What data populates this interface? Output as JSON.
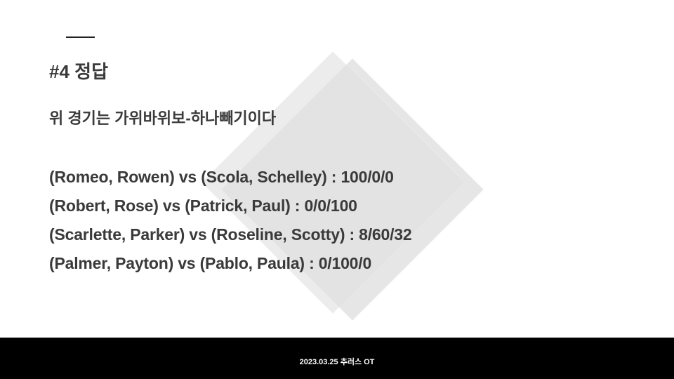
{
  "slide": {
    "title": "#4 정답",
    "subtitle": "위 경기는 가위바위보-하나빼기이다",
    "matches": [
      "(Romeo, Rowen) vs (Scola, Schelley) : 100/0/0",
      "(Robert, Rose) vs (Patrick, Paul) : 0/0/100",
      "(Scarlette, Parker) vs (Roseline, Scotty) : 8/60/32",
      "(Palmer, Payton) vs (Pablo, Paula) : 0/100/0"
    ]
  },
  "footer": {
    "text": "2023.03.25 추러스 OT"
  },
  "colors": {
    "text": "#3a3a3a",
    "footer_background": "#000000",
    "footer_text": "#ffffff",
    "decoration": "#e2e2e2"
  }
}
